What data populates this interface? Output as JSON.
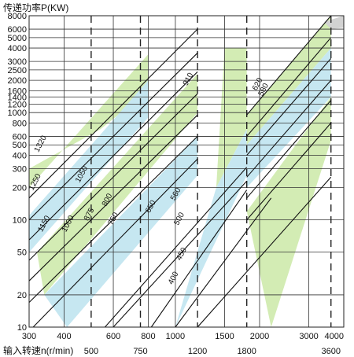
{
  "chart_data": {
    "type": "line",
    "ylabel": "传递功率P(KW)",
    "xlabel": "输入转速n(r/min)",
    "xlim": [
      300,
      4000
    ],
    "ylim": [
      10,
      8000
    ],
    "xscale": "log",
    "yscale": "log",
    "grid": true,
    "x_ticks": [
      300,
      400,
      600,
      800,
      1000,
      1500,
      2000,
      3000,
      4000
    ],
    "y_ticks": [
      10,
      20,
      50,
      100,
      200,
      300,
      400,
      500,
      600,
      800,
      1000,
      1200,
      1400,
      1600,
      2000,
      2500,
      3000,
      4000,
      5000,
      6000,
      8000
    ],
    "x_ticks_sync": [
      500,
      750,
      1200,
      1800,
      3600
    ],
    "colors": {
      "green": "#d3ecb4",
      "blue": "#c6e7f1",
      "gray": "#d2d2d2",
      "line": "#111111"
    },
    "bands": [
      {
        "x": [
          300,
          800,
          800,
          540,
          300
        ],
        "y": [
          200,
          3500,
          1600,
          700,
          300
        ],
        "fill": "green"
      },
      {
        "x": [
          300,
          800,
          800,
          300
        ],
        "y": [
          110,
          2000,
          900,
          50
        ],
        "fill": "blue"
      },
      {
        "x": [
          320,
          1200,
          1200,
          340
        ],
        "y": [
          50,
          2300,
          1000,
          20
        ],
        "fill": "green"
      },
      {
        "x": [
          340,
          1200,
          1200,
          410
        ],
        "y": [
          20,
          600,
          260,
          10
        ],
        "fill": "blue"
      },
      {
        "x": [
          1500,
          1800,
          1800,
          1400
        ],
        "y": [
          4000,
          4000,
          700,
          200
        ],
        "fill": "green"
      },
      {
        "x": [
          1400,
          1800,
          1800,
          1000
        ],
        "y": [
          200,
          700,
          260,
          10
        ],
        "fill": "blue"
      },
      {
        "x": [
          1800,
          3600,
          3600,
          1800
        ],
        "y": [
          950,
          8000,
          4000,
          500
        ],
        "fill": "green"
      },
      {
        "x": [
          1800,
          3600,
          3600,
          1800
        ],
        "y": [
          500,
          4000,
          1400,
          200
        ],
        "fill": "blue"
      },
      {
        "x": [
          3400,
          4000,
          4000,
          3600
        ],
        "y": [
          7000,
          8000,
          6200,
          6000
        ],
        "fill": "gray"
      },
      {
        "x": [
          1800,
          3600,
          3600,
          2200
        ],
        "y": [
          120,
          1400,
          550,
          10
        ],
        "fill": "green"
      }
    ],
    "lines": [
      {
        "x": [
          300,
          1200
        ],
        "y": [
          160,
          6000
        ]
      },
      {
        "x": [
          300,
          1200
        ],
        "y": [
          100,
          3600
        ]
      },
      {
        "x": [
          300,
          1200
        ],
        "y": [
          65,
          2400
        ]
      },
      {
        "x": [
          300,
          1200
        ],
        "y": [
          42,
          1500
        ]
      },
      {
        "x": [
          300,
          1200
        ],
        "y": [
          27,
          950
        ]
      },
      {
        "x": [
          300,
          1200
        ],
        "y": [
          17,
          600
        ]
      },
      {
        "x": [
          310,
          1200
        ],
        "y": [
          10,
          370
        ]
      },
      {
        "x": [
          560,
          1800
        ],
        "y": [
          10,
          310
        ]
      },
      {
        "x": [
          820,
          1800
        ],
        "y": [
          10,
          190
        ]
      },
      {
        "x": [
          1200,
          3600
        ],
        "y": [
          10,
          250
        ]
      },
      {
        "x": [
          600,
          1800
        ],
        "y": [
          10,
          230
        ]
      },
      {
        "x": [
          1000,
          2200
        ],
        "y": [
          10,
          160
        ]
      },
      {
        "x": [
          1800,
          3600
        ],
        "y": [
          950,
          8000
        ]
      },
      {
        "x": [
          1800,
          3600
        ],
        "y": [
          600,
          5000
        ]
      },
      {
        "x": [
          1800,
          3600
        ],
        "y": [
          400,
          3200
        ]
      },
      {
        "x": [
          1800,
          3600
        ],
        "y": [
          250,
          2000
        ]
      },
      {
        "x": [
          1800,
          3600
        ],
        "y": [
          160,
          1300
        ]
      },
      {
        "x": [
          1800,
          3600
        ],
        "y": [
          100,
          800
        ]
      }
    ],
    "annotations": [
      {
        "text": "1320",
        "x": 335,
        "y": 500,
        "angle": -62
      },
      {
        "text": "1250",
        "x": 320,
        "y": 220,
        "angle": -62
      },
      {
        "text": "1150",
        "x": 345,
        "y": 90,
        "angle": -62
      },
      {
        "text": "1050",
        "x": 470,
        "y": 260,
        "angle": -62
      },
      {
        "text": "1000",
        "x": 420,
        "y": 90,
        "angle": -62
      },
      {
        "text": "875",
        "x": 500,
        "y": 110,
        "angle": -62
      },
      {
        "text": "800",
        "x": 580,
        "y": 150,
        "angle": -62
      },
      {
        "text": "750",
        "x": 610,
        "y": 100,
        "angle": -62
      },
      {
        "text": "910",
        "x": 1130,
        "y": 2000,
        "angle": -62
      },
      {
        "text": "650",
        "x": 830,
        "y": 130,
        "angle": -62
      },
      {
        "text": "560",
        "x": 1020,
        "y": 170,
        "angle": -62
      },
      {
        "text": "500",
        "x": 1050,
        "y": 100,
        "angle": -62
      },
      {
        "text": "450",
        "x": 1070,
        "y": 47,
        "angle": -62
      },
      {
        "text": "400",
        "x": 1000,
        "y": 28,
        "angle": -62
      },
      {
        "text": "620",
        "x": 2000,
        "y": 1800,
        "angle": -62
      },
      {
        "text": "580",
        "x": 2100,
        "y": 1600,
        "angle": -62
      }
    ]
  }
}
